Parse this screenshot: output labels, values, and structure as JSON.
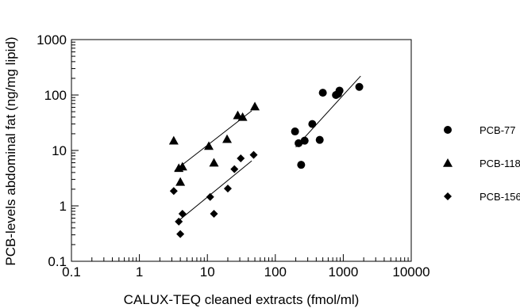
{
  "chart_data": {
    "type": "scatter",
    "xscale": "log",
    "yscale": "log",
    "xlim": [
      0.1,
      10000
    ],
    "ylim": [
      0.1,
      1000
    ],
    "xlabel": "CALUX-TEQ cleaned extracts (fmol/ml)",
    "ylabel": "PCB-levels abdominal fat (ng/mg lipid)",
    "x_ticks": [
      {
        "value": 0.1,
        "label": "0.1"
      },
      {
        "value": 1,
        "label": "1"
      },
      {
        "value": 10,
        "label": "10"
      },
      {
        "value": 100,
        "label": "100"
      },
      {
        "value": 1000,
        "label": "1000"
      },
      {
        "value": 10000,
        "label": "10000"
      }
    ],
    "y_ticks": [
      {
        "value": 0.1,
        "label": "0.1"
      },
      {
        "value": 1,
        "label": "1"
      },
      {
        "value": 10,
        "label": "10"
      },
      {
        "value": 100,
        "label": "100"
      },
      {
        "value": 1000,
        "label": "1000"
      }
    ],
    "grid": false,
    "legend_position": "right",
    "series": [
      {
        "name": "PCB-77",
        "marker": "circle",
        "points": [
          [
            195,
            22
          ],
          [
            220,
            13.5
          ],
          [
            240,
            5.5
          ],
          [
            270,
            15
          ],
          [
            350,
            30
          ],
          [
            450,
            15.5
          ],
          [
            500,
            110
          ],
          [
            780,
            100
          ],
          [
            840,
            105
          ],
          [
            880,
            120
          ],
          [
            1720,
            140
          ]
        ],
        "fit": [
          [
            200,
            11.5
          ],
          [
            1800,
            220
          ]
        ]
      },
      {
        "name": "PCB-118",
        "marker": "triangle",
        "points": [
          [
            3.2,
            15
          ],
          [
            3.8,
            4.8
          ],
          [
            4.0,
            2.7
          ],
          [
            4.3,
            5.1
          ],
          [
            10.5,
            12
          ],
          [
            12.5,
            6
          ],
          [
            19.5,
            16
          ],
          [
            28,
            43
          ],
          [
            33,
            40
          ],
          [
            50,
            62
          ]
        ],
        "fit": [
          [
            3.3,
            4.3
          ],
          [
            45,
            52
          ]
        ]
      },
      {
        "name": "PCB-156",
        "marker": "diamond",
        "points": [
          [
            3.2,
            1.85
          ],
          [
            3.8,
            0.52
          ],
          [
            4.0,
            0.31
          ],
          [
            4.3,
            0.72
          ],
          [
            11,
            1.45
          ],
          [
            12.5,
            0.72
          ],
          [
            20,
            2.05
          ],
          [
            25,
            4.6
          ],
          [
            31,
            7.2
          ],
          [
            48,
            8.3
          ]
        ],
        "fit": [
          [
            3.5,
            0.5
          ],
          [
            45,
            6.5
          ]
        ]
      }
    ]
  }
}
